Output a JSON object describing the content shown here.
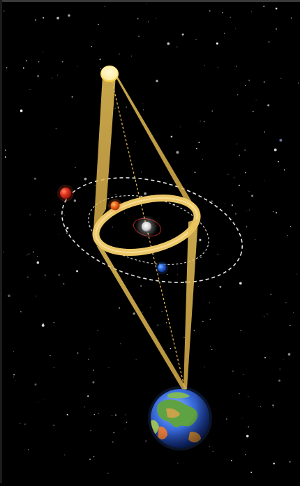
{
  "scene": {
    "stars": "starfield",
    "light_beam_color": "#e9c25a",
    "ring_color": "#f4cd6b",
    "orbit_color": "#ffffff",
    "sight_line_color": "#e8b84a"
  },
  "bodies": [
    {
      "name": "star-source",
      "color": "#ffe88a"
    },
    {
      "name": "central-star",
      "color": "#e8e8e8"
    },
    {
      "name": "planet-red-outer",
      "color": "#d82c1c"
    },
    {
      "name": "planet-orange",
      "color": "#f06a14"
    },
    {
      "name": "planet-blue",
      "color": "#2a63d6"
    },
    {
      "name": "earth",
      "color": "#3b6fe0"
    }
  ]
}
